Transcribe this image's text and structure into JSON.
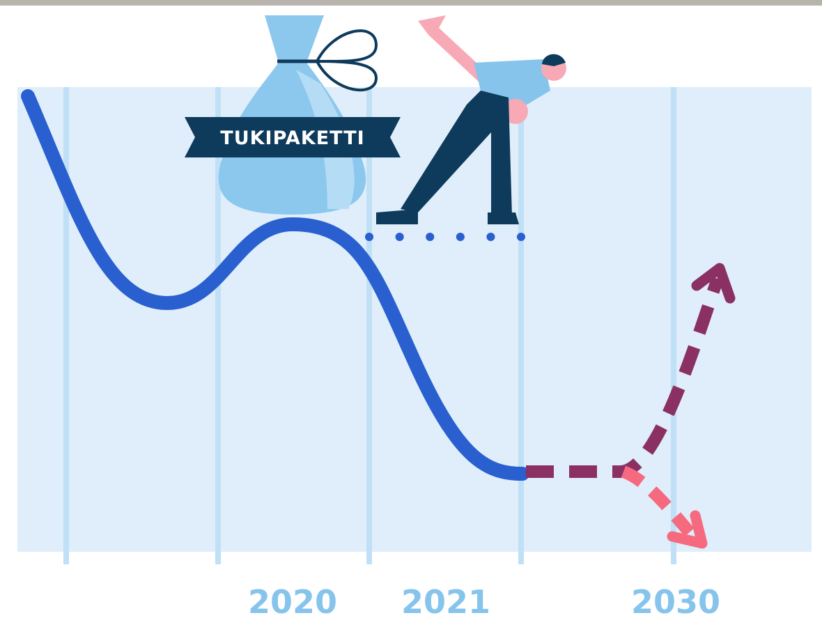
{
  "banner": {
    "label": "TUKIPAKETTI"
  },
  "year_labels": [
    "2020",
    "2021",
    "2030"
  ]
}
